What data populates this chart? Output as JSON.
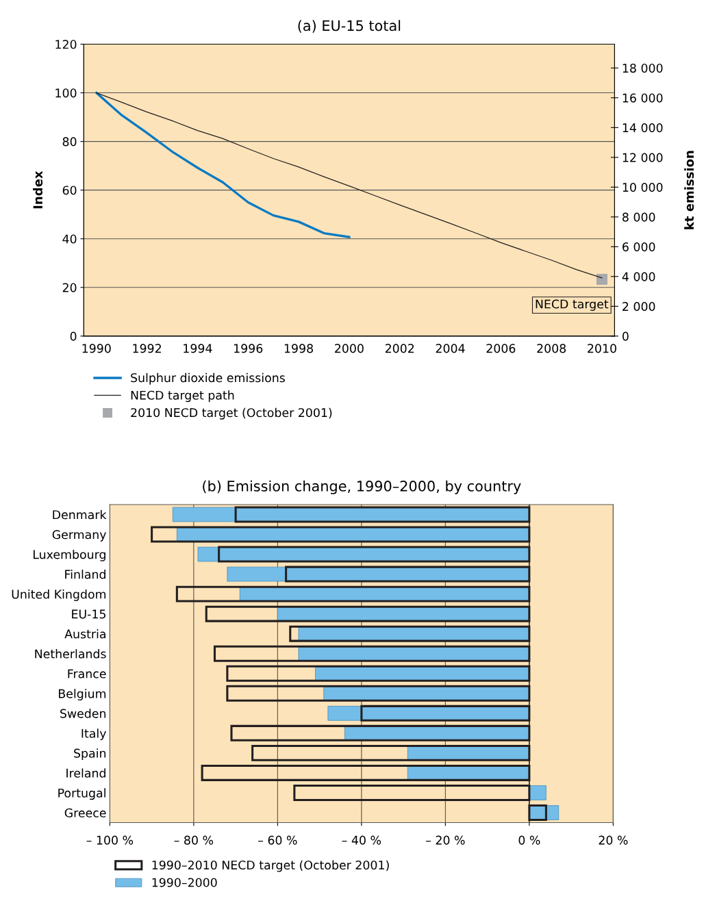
{
  "chart_data": [
    {
      "type": "line",
      "title": "(a) EU-15 total",
      "ylabel": "Index",
      "y2label": "kt emission",
      "categories": [
        "1990",
        null,
        "1992",
        null,
        "1994",
        null,
        "1996",
        null,
        "1998",
        null,
        "2000",
        null,
        "2002",
        null,
        "2004",
        null,
        "2006",
        null,
        "2008",
        null,
        "2010"
      ],
      "series": [
        {
          "name": "Sulphur dioxide emissions",
          "type": "line",
          "color": "#0a7ac4",
          "values": [
            100,
            90.8,
            83.5,
            75.8,
            69.2,
            63.2,
            55,
            49.6,
            47,
            42.3,
            40.7,
            null,
            null,
            null,
            null,
            null,
            null,
            null,
            null,
            null,
            null
          ]
        },
        {
          "name": "NECD target path",
          "type": "line",
          "color": "#231f20",
          "values": [
            100,
            96.1,
            92.1,
            88.5,
            84.5,
            81.2,
            77,
            73,
            69.5,
            65.5,
            61.7,
            57.8,
            53.9,
            50.1,
            46.3,
            42.4,
            38.4,
            34.8,
            31.2,
            27.3,
            23.9
          ]
        },
        {
          "name": "2010 NECD target (October 2001)",
          "type": "scatter",
          "marker": "square",
          "color": "#a7a9ac",
          "values": [
            null,
            null,
            null,
            null,
            null,
            null,
            null,
            null,
            null,
            null,
            null,
            null,
            null,
            null,
            null,
            null,
            null,
            null,
            null,
            null,
            23.3
          ]
        }
      ],
      "ylim": [
        0,
        120
      ],
      "yticks": [
        0,
        20,
        40,
        60,
        80,
        100,
        120
      ],
      "y2lim": [
        0,
        19600
      ],
      "y2ticks": [
        {
          "value": 0,
          "label": "0"
        },
        {
          "value": 2000,
          "label": "2 000"
        },
        {
          "value": 4000,
          "label": "4 000"
        },
        {
          "value": 6000,
          "label": "6 000"
        },
        {
          "value": 8000,
          "label": "8 000"
        },
        {
          "value": 10000,
          "label": "10 000"
        },
        {
          "value": 12000,
          "label": "12 000"
        },
        {
          "value": 14000,
          "label": "14 000"
        },
        {
          "value": 16000,
          "label": "16 000"
        },
        {
          "value": 18000,
          "label": "18 000"
        }
      ],
      "annotations": [
        {
          "text": "NECD target",
          "x": "2010",
          "y": 23.3
        }
      ],
      "grid": "y",
      "legend": "bottom"
    },
    {
      "type": "bar",
      "orientation": "horizontal",
      "title": "(b) Emission change, 1990–2000, by country",
      "categories": [
        "Denmark",
        "Germany",
        "Luxembourg",
        "Finland",
        "United Kingdom",
        "EU-15",
        "Austria",
        "Netherlands",
        "France",
        "Belgium",
        "Sweden",
        "Italy",
        "Spain",
        "Ireland",
        "Portugal",
        "Greece"
      ],
      "series": [
        {
          "name": "1990–2010 NECD target (October 2001)",
          "color": "#231f20",
          "values": [
            -70,
            -90,
            -74,
            -58,
            -84,
            -77,
            -57,
            -75,
            -72,
            -72,
            -40,
            -71,
            -66,
            -78,
            -56,
            4
          ]
        },
        {
          "name": "1990–2000",
          "color": "#73bde8",
          "values": [
            -85,
            -84,
            -79,
            -72,
            -69,
            -60,
            -55,
            -55,
            -51,
            -49,
            -48,
            -44,
            -29,
            -29,
            4,
            7
          ]
        }
      ],
      "xlim": [
        -100,
        20
      ],
      "xticks": [
        {
          "value": -100,
          "label": "– 100 %"
        },
        {
          "value": -80,
          "label": "– 80 %"
        },
        {
          "value": -60,
          "label": "– 60 %"
        },
        {
          "value": -40,
          "label": "– 40 %"
        },
        {
          "value": -20,
          "label": "– 20 %"
        },
        {
          "value": 0,
          "label": "0 %"
        },
        {
          "value": 20,
          "label": "20 %"
        }
      ],
      "grid": "x",
      "legend": "bottom"
    }
  ]
}
